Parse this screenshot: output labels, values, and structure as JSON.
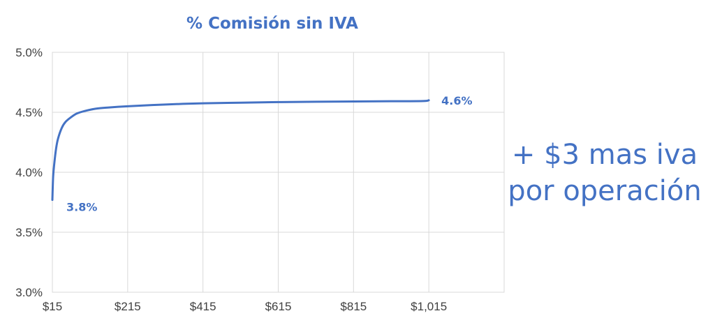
{
  "chart_data": {
    "type": "line",
    "title": "% Comisión sin IVA",
    "xlabel": "",
    "ylabel": "",
    "xlim": [
      15,
      1215
    ],
    "ylim": [
      3.0,
      5.0
    ],
    "x_ticks": [
      15,
      215,
      415,
      615,
      815,
      1015
    ],
    "x_tick_labels": [
      "$15",
      "$215",
      "$415",
      "$615",
      "$815",
      "$1,015"
    ],
    "y_ticks": [
      3.0,
      3.5,
      4.0,
      4.5,
      5.0
    ],
    "y_tick_labels": [
      "3.0%",
      "3.5%",
      "4.0%",
      "4.5%",
      "5.0%"
    ],
    "grid": true,
    "legend": "none",
    "series": [
      {
        "color": "#4472C4",
        "x": [
          15,
          17,
          20,
          25,
          30,
          40,
          50,
          65,
          80,
          100,
          130,
          165,
          215,
          315,
          415,
          515,
          615,
          715,
          815,
          915,
          1000,
          1015
        ],
        "y": [
          3.77,
          3.96,
          4.07,
          4.2,
          4.28,
          4.37,
          4.42,
          4.46,
          4.49,
          4.51,
          4.53,
          4.54,
          4.55,
          4.565,
          4.575,
          4.58,
          4.585,
          4.588,
          4.59,
          4.592,
          4.594,
          4.6
        ]
      }
    ],
    "annotations": [
      {
        "text": "3.8%",
        "x": 15,
        "y": 3.77
      },
      {
        "text": "4.6%",
        "x": 1015,
        "y": 4.6
      }
    ]
  },
  "side_note": {
    "line1": "+ $3 mas iva",
    "line2": "por operación"
  },
  "colors": {
    "accent": "#4472C4",
    "grid": "#D9D9D9",
    "tick_text": "#404040"
  }
}
